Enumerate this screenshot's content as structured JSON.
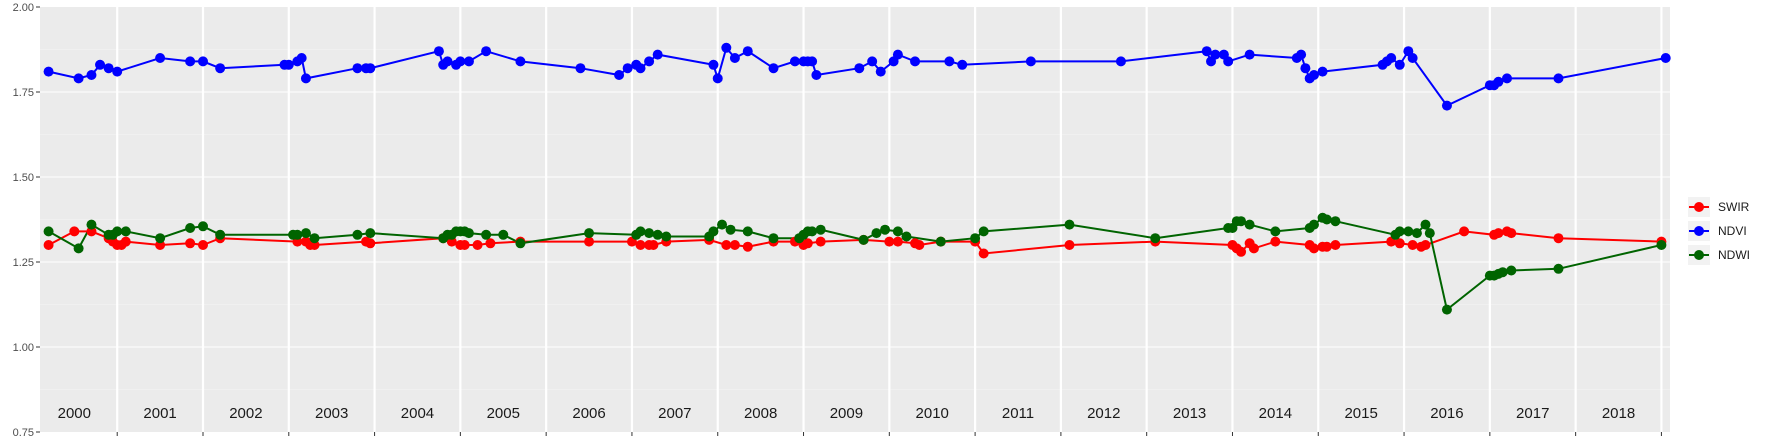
{
  "chart_data": {
    "type": "line",
    "title": "",
    "xlabel": "",
    "ylabel": "",
    "x_range": [
      1999.6,
      2018.6
    ],
    "ylim": [
      0.75,
      2.0
    ],
    "y_ticks": [
      0.75,
      1.0,
      1.25,
      1.5,
      1.75,
      2.0
    ],
    "y_tick_labels": [
      "0.75",
      "1.00",
      "1.25",
      "1.50",
      "1.75",
      "2.00"
    ],
    "x_tick_labels": [
      "2000",
      "2001",
      "2002",
      "2003",
      "2004",
      "2005",
      "2006",
      "2007",
      "2008",
      "2009",
      "2010",
      "2011",
      "2012",
      "2013",
      "2014",
      "2015",
      "2016",
      "2017",
      "2018"
    ],
    "grid": true,
    "legend_position": "right",
    "series": [
      {
        "name": "SWIR",
        "color": "#ff0000",
        "x": [
          1999.7,
          2000.0,
          2000.2,
          2000.4,
          2000.45,
          2000.5,
          2000.55,
          2000.6,
          2001.0,
          2001.35,
          2001.5,
          2001.7,
          2002.6,
          2002.7,
          2002.75,
          2002.8,
          2003.4,
          2003.45,
          2004.3,
          2004.4,
          2004.5,
          2004.55,
          2004.7,
          2004.85,
          2005.2,
          2006.0,
          2006.5,
          2006.6,
          2006.7,
          2006.75,
          2006.9,
          2007.4,
          2007.6,
          2007.7,
          2007.85,
          2008.15,
          2008.4,
          2008.5,
          2008.55,
          2008.7,
          2009.2,
          2009.5,
          2009.6,
          2009.8,
          2009.85,
          2010.1,
          2010.5,
          2010.6,
          2011.6,
          2012.6,
          2013.5,
          2013.55,
          2013.6,
          2013.7,
          2013.75,
          2014.0,
          2014.4,
          2014.45,
          2014.55,
          2014.6,
          2014.7,
          2015.35,
          2015.45,
          2015.6,
          2015.7,
          2015.75,
          2016.2,
          2016.55,
          2016.6,
          2016.7,
          2016.75,
          2017.3,
          2018.5
        ],
        "y": [
          1.3,
          1.34,
          1.34,
          1.32,
          1.31,
          1.3,
          1.3,
          1.31,
          1.3,
          1.305,
          1.3,
          1.32,
          1.31,
          1.31,
          1.3,
          1.3,
          1.31,
          1.305,
          1.32,
          1.31,
          1.3,
          1.3,
          1.3,
          1.305,
          1.31,
          1.31,
          1.31,
          1.3,
          1.3,
          1.3,
          1.31,
          1.315,
          1.3,
          1.3,
          1.295,
          1.31,
          1.31,
          1.3,
          1.305,
          1.31,
          1.315,
          1.31,
          1.31,
          1.305,
          1.3,
          1.31,
          1.31,
          1.275,
          1.3,
          1.31,
          1.3,
          1.29,
          1.28,
          1.305,
          1.29,
          1.31,
          1.3,
          1.29,
          1.295,
          1.295,
          1.3,
          1.31,
          1.305,
          1.3,
          1.295,
          1.3,
          1.34,
          1.33,
          1.335,
          1.34,
          1.335,
          1.32,
          1.31
        ]
      },
      {
        "name": "NDVI",
        "color": "#0000ff",
        "x": [
          1999.7,
          2000.05,
          2000.2,
          2000.3,
          2000.4,
          2000.5,
          2001.0,
          2001.35,
          2001.5,
          2001.7,
          2002.45,
          2002.5,
          2002.6,
          2002.65,
          2002.7,
          2003.3,
          2003.4,
          2003.45,
          2004.25,
          2004.3,
          2004.35,
          2004.45,
          2004.5,
          2004.6,
          2004.8,
          2005.2,
          2005.9,
          2006.35,
          2006.45,
          2006.55,
          2006.6,
          2006.7,
          2006.8,
          2007.45,
          2007.5,
          2007.6,
          2007.7,
          2007.85,
          2008.15,
          2008.4,
          2008.5,
          2008.55,
          2008.6,
          2008.65,
          2009.15,
          2009.3,
          2009.4,
          2009.55,
          2009.6,
          2009.8,
          2010.2,
          2010.35,
          2011.15,
          2012.2,
          2013.2,
          2013.25,
          2013.3,
          2013.4,
          2013.45,
          2013.7,
          2014.25,
          2014.3,
          2014.35,
          2014.4,
          2014.45,
          2014.55,
          2015.25,
          2015.3,
          2015.35,
          2015.45,
          2015.55,
          2015.6,
          2016.0,
          2016.5,
          2016.55,
          2016.6,
          2016.7,
          2017.3,
          2018.55
        ],
        "y": [
          1.81,
          1.79,
          1.8,
          1.83,
          1.82,
          1.81,
          1.85,
          1.84,
          1.84,
          1.82,
          1.83,
          1.83,
          1.84,
          1.85,
          1.79,
          1.82,
          1.82,
          1.82,
          1.87,
          1.83,
          1.84,
          1.83,
          1.84,
          1.84,
          1.87,
          1.84,
          1.82,
          1.8,
          1.82,
          1.83,
          1.82,
          1.84,
          1.86,
          1.83,
          1.79,
          1.88,
          1.85,
          1.87,
          1.82,
          1.84,
          1.84,
          1.84,
          1.84,
          1.8,
          1.82,
          1.84,
          1.81,
          1.84,
          1.86,
          1.84,
          1.84,
          1.83,
          1.84,
          1.84,
          1.87,
          1.84,
          1.86,
          1.86,
          1.84,
          1.86,
          1.85,
          1.86,
          1.82,
          1.79,
          1.8,
          1.81,
          1.83,
          1.84,
          1.85,
          1.83,
          1.87,
          1.85,
          1.71,
          1.77,
          1.77,
          1.78,
          1.79,
          1.79,
          1.85
        ]
      },
      {
        "name": "NDWI",
        "color": "#006400",
        "x": [
          1999.7,
          2000.05,
          2000.2,
          2000.4,
          2000.45,
          2000.5,
          2000.6,
          2001.0,
          2001.35,
          2001.5,
          2001.7,
          2002.55,
          2002.6,
          2002.7,
          2002.8,
          2003.3,
          2003.45,
          2004.3,
          2004.35,
          2004.4,
          2004.45,
          2004.5,
          2004.55,
          2004.6,
          2004.8,
          2005.0,
          2005.2,
          2006.0,
          2006.55,
          2006.6,
          2006.7,
          2006.8,
          2006.9,
          2007.4,
          2007.45,
          2007.55,
          2007.65,
          2007.85,
          2008.15,
          2008.45,
          2008.5,
          2008.55,
          2008.6,
          2008.7,
          2009.2,
          2009.35,
          2009.45,
          2009.6,
          2009.7,
          2010.1,
          2010.5,
          2010.6,
          2011.6,
          2012.6,
          2013.45,
          2013.5,
          2013.55,
          2013.6,
          2013.7,
          2014.0,
          2014.4,
          2014.45,
          2014.55,
          2014.6,
          2014.7,
          2015.4,
          2015.45,
          2015.55,
          2015.65,
          2015.75,
          2015.8,
          2016.0,
          2016.5,
          2016.55,
          2016.6,
          2016.65,
          2016.75,
          2017.3,
          2018.5
        ],
        "y": [
          1.34,
          1.29,
          1.36,
          1.33,
          1.33,
          1.34,
          1.34,
          1.32,
          1.35,
          1.355,
          1.33,
          1.33,
          1.33,
          1.335,
          1.32,
          1.33,
          1.335,
          1.32,
          1.33,
          1.33,
          1.34,
          1.34,
          1.34,
          1.335,
          1.33,
          1.33,
          1.305,
          1.335,
          1.33,
          1.34,
          1.335,
          1.33,
          1.325,
          1.325,
          1.34,
          1.36,
          1.345,
          1.34,
          1.32,
          1.32,
          1.33,
          1.34,
          1.34,
          1.345,
          1.315,
          1.335,
          1.345,
          1.34,
          1.325,
          1.31,
          1.32,
          1.34,
          1.36,
          1.32,
          1.35,
          1.35,
          1.37,
          1.37,
          1.36,
          1.34,
          1.35,
          1.36,
          1.38,
          1.375,
          1.37,
          1.33,
          1.34,
          1.34,
          1.335,
          1.36,
          1.335,
          1.11,
          1.21,
          1.21,
          1.215,
          1.22,
          1.225,
          1.23,
          1.3
        ]
      }
    ]
  }
}
